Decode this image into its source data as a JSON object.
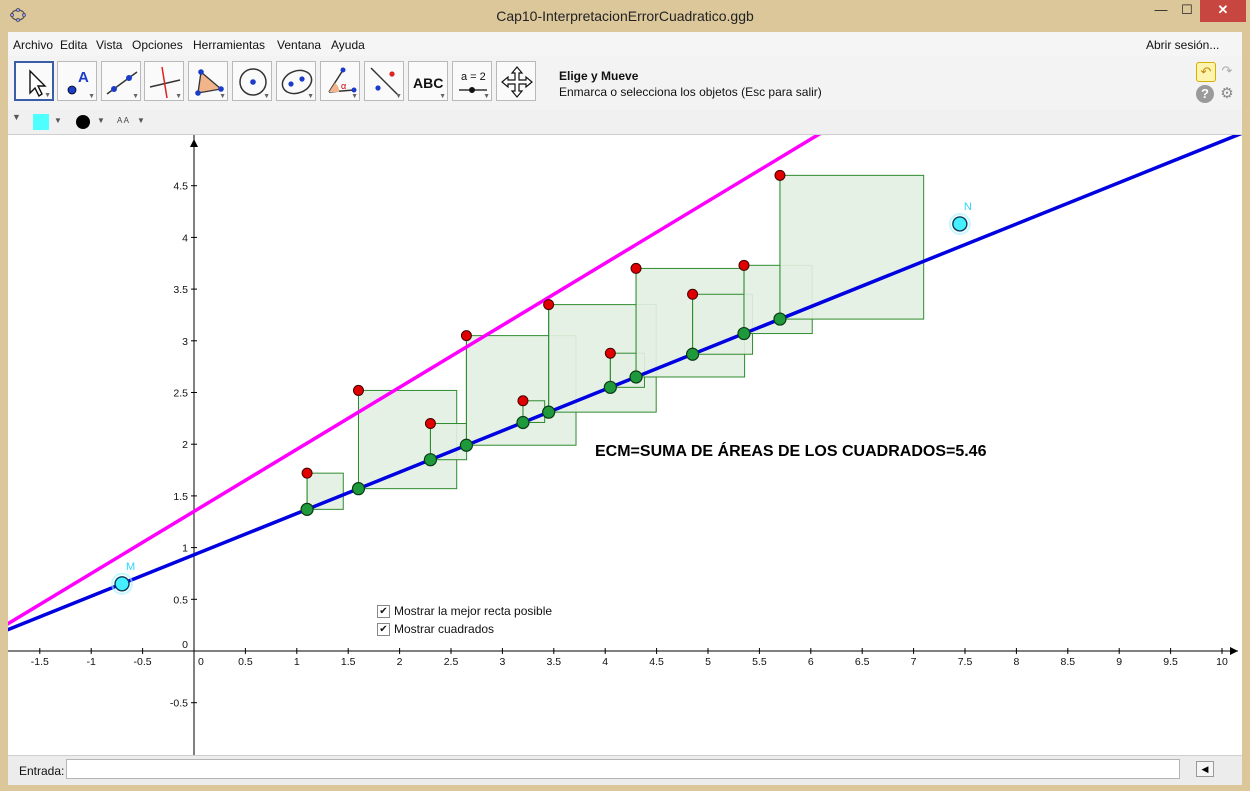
{
  "window": {
    "title": "Cap10-InterpretacionErrorCuadratico.ggb",
    "controls": [
      "—",
      "☐",
      "✕"
    ]
  },
  "menu": {
    "items": [
      "Archivo",
      "Edita",
      "Vista",
      "Opciones",
      "Herramientas",
      "Ventana",
      "Ayuda"
    ],
    "login": "Abrir sesión..."
  },
  "toolbar": {
    "tools": [
      {
        "icon": "move-pointer-icon"
      },
      {
        "icon": "new-point-icon",
        "label": "A"
      },
      {
        "icon": "line-through-two-points-icon"
      },
      {
        "icon": "perpendicular-line-icon"
      },
      {
        "icon": "polygon-icon"
      },
      {
        "icon": "circle-with-center-icon"
      },
      {
        "icon": "ellipse-icon"
      },
      {
        "icon": "angle-icon",
        "label": "α"
      },
      {
        "icon": "reflect-about-line-icon"
      },
      {
        "icon": "text-icon",
        "label": "ABC"
      },
      {
        "icon": "slider-icon",
        "label": "a = 2"
      },
      {
        "icon": "move-graphics-view-icon"
      }
    ],
    "active_tool_title": "Elige y Mueve",
    "active_tool_help": "Enmarca o selecciona los objetos (Esc para salir)"
  },
  "stylebar": {
    "color": "#4dffff",
    "point_style_color": "#000000",
    "text_size_label": "A A"
  },
  "graphics": {
    "x_ticks": [
      "-1.5",
      "-1",
      "-0.5",
      "0",
      "0.5",
      "1",
      "1.5",
      "2",
      "2.5",
      "3",
      "3.5",
      "4",
      "4.5",
      "5",
      "5.5",
      "6",
      "6.5",
      "7",
      "7.5",
      "8",
      "8.5",
      "9",
      "9.5",
      "10"
    ],
    "y_ticks": [
      "-0.5",
      "0",
      "0.5",
      "1",
      "1.5",
      "2",
      "2.5",
      "3",
      "3.5",
      "4",
      "4.5"
    ],
    "best_line": {
      "color": "#ff00ff",
      "slope": 0.6,
      "intercept": 1.35
    },
    "user_line": {
      "color": "#0000e0",
      "slope": 0.4,
      "intercept": 0.93
    },
    "point_M": {
      "label": "M",
      "x": -0.7,
      "y": 0.65
    },
    "point_N": {
      "label": "N",
      "x": 7.45,
      "y": 4.13
    },
    "data_points": [
      {
        "x": 1.1,
        "y": 1.72
      },
      {
        "x": 1.6,
        "y": 2.52
      },
      {
        "x": 2.3,
        "y": 2.2
      },
      {
        "x": 2.65,
        "y": 3.05
      },
      {
        "x": 3.2,
        "y": 2.42
      },
      {
        "x": 3.45,
        "y": 3.35
      },
      {
        "x": 4.05,
        "y": 2.88
      },
      {
        "x": 4.3,
        "y": 3.7
      },
      {
        "x": 4.85,
        "y": 3.45
      },
      {
        "x": 5.35,
        "y": 3.73
      },
      {
        "x": 5.7,
        "y": 4.6
      }
    ],
    "square_fill": "#e3f0e3",
    "square_stroke": "#2e8b2e",
    "ecm_text": "ECM=SUMA DE ÁREAS DE LOS CUADRADOS=5.46",
    "checkboxes": [
      {
        "label": "Mostrar la mejor recta posible",
        "checked": true
      },
      {
        "label": "Mostrar cuadrados",
        "checked": true
      }
    ]
  },
  "input_bar": {
    "label": "Entrada:",
    "value": ""
  }
}
